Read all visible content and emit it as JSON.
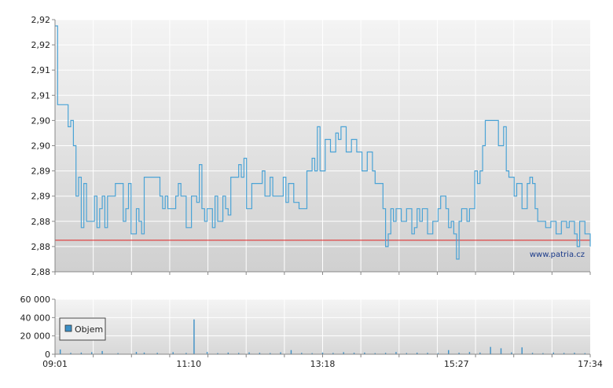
{
  "chart_data": [
    {
      "type": "line",
      "title": "",
      "xlabel": "",
      "ylabel": "",
      "ylim": [
        2.88,
        2.92
      ],
      "y_tick_labels": [
        "2,92",
        "2,92",
        "2,91",
        "2,91",
        "2,90",
        "2,90",
        "2,89",
        "2,89",
        "2,88",
        "2,88",
        "2,88"
      ],
      "grid": true,
      "reference_line": {
        "value": 2.885,
        "color": "#e02020"
      },
      "watermark": "www.patria.cz",
      "series": [
        {
          "color": "#4aa3d6",
          "points": [
            [
              0,
              2.919
            ],
            [
              1,
              2.9065
            ],
            [
              3,
              2.9065
            ],
            [
              5,
              2.903
            ],
            [
              6,
              2.904
            ],
            [
              7,
              2.9
            ],
            [
              8,
              2.892
            ],
            [
              9,
              2.895
            ],
            [
              10,
              2.887
            ],
            [
              11,
              2.894
            ],
            [
              12,
              2.888
            ],
            [
              14,
              2.888
            ],
            [
              15,
              2.892
            ],
            [
              16,
              2.887
            ],
            [
              17,
              2.89
            ],
            [
              18,
              2.892
            ],
            [
              19,
              2.887
            ],
            [
              20,
              2.892
            ],
            [
              22,
              2.892
            ],
            [
              23,
              2.894
            ],
            [
              25,
              2.894
            ],
            [
              26,
              2.888
            ],
            [
              27,
              2.89
            ],
            [
              28,
              2.894
            ],
            [
              29,
              2.886
            ],
            [
              30,
              2.886
            ],
            [
              31,
              2.89
            ],
            [
              32,
              2.888
            ],
            [
              33,
              2.886
            ],
            [
              34,
              2.895
            ],
            [
              39,
              2.895
            ],
            [
              40,
              2.892
            ],
            [
              41,
              2.89
            ],
            [
              42,
              2.892
            ],
            [
              43,
              2.89
            ],
            [
              45,
              2.89
            ],
            [
              46,
              2.892
            ],
            [
              47,
              2.894
            ],
            [
              48,
              2.892
            ],
            [
              49,
              2.892
            ],
            [
              50,
              2.887
            ],
            [
              51,
              2.887
            ],
            [
              52,
              2.892
            ],
            [
              53,
              2.892
            ],
            [
              54,
              2.891
            ],
            [
              55,
              2.897
            ],
            [
              56,
              2.89
            ],
            [
              57,
              2.888
            ],
            [
              58,
              2.89
            ],
            [
              59,
              2.89
            ],
            [
              60,
              2.887
            ],
            [
              61,
              2.892
            ],
            [
              62,
              2.888
            ],
            [
              63,
              2.888
            ],
            [
              64,
              2.892
            ],
            [
              65,
              2.89
            ],
            [
              66,
              2.889
            ],
            [
              67,
              2.895
            ],
            [
              69,
              2.895
            ],
            [
              70,
              2.897
            ],
            [
              71,
              2.895
            ],
            [
              72,
              2.898
            ],
            [
              73,
              2.89
            ],
            [
              74,
              2.89
            ],
            [
              75,
              2.894
            ],
            [
              78,
              2.894
            ],
            [
              79,
              2.896
            ],
            [
              80,
              2.892
            ],
            [
              81,
              2.892
            ],
            [
              82,
              2.895
            ],
            [
              83,
              2.892
            ],
            [
              84,
              2.892
            ],
            [
              86,
              2.892
            ],
            [
              87,
              2.895
            ],
            [
              88,
              2.891
            ],
            [
              89,
              2.894
            ],
            [
              90,
              2.894
            ],
            [
              91,
              2.891
            ],
            [
              92,
              2.891
            ],
            [
              93,
              2.89
            ],
            [
              95,
              2.89
            ],
            [
              96,
              2.896
            ],
            [
              97,
              2.896
            ],
            [
              98,
              2.898
            ],
            [
              99,
              2.896
            ],
            [
              100,
              2.903
            ],
            [
              101,
              2.896
            ],
            [
              102,
              2.896
            ],
            [
              103,
              2.901
            ],
            [
              104,
              2.901
            ],
            [
              105,
              2.899
            ],
            [
              106,
              2.899
            ],
            [
              107,
              2.902
            ],
            [
              108,
              2.901
            ],
            [
              109,
              2.903
            ],
            [
              110,
              2.903
            ],
            [
              111,
              2.899
            ],
            [
              112,
              2.899
            ],
            [
              113,
              2.901
            ],
            [
              115,
              2.899
            ],
            [
              116,
              2.899
            ],
            [
              117,
              2.896
            ],
            [
              118,
              2.896
            ],
            [
              119,
              2.899
            ],
            [
              120,
              2.899
            ],
            [
              121,
              2.896
            ],
            [
              122,
              2.894
            ],
            [
              124,
              2.894
            ],
            [
              125,
              2.89
            ],
            [
              126,
              2.884
            ],
            [
              127,
              2.886
            ],
            [
              128,
              2.89
            ],
            [
              129,
              2.888
            ],
            [
              130,
              2.89
            ],
            [
              131,
              2.89
            ],
            [
              132,
              2.888
            ],
            [
              133,
              2.888
            ],
            [
              134,
              2.89
            ],
            [
              135,
              2.89
            ],
            [
              136,
              2.886
            ],
            [
              137,
              2.887
            ],
            [
              138,
              2.89
            ],
            [
              139,
              2.888
            ],
            [
              140,
              2.89
            ],
            [
              141,
              2.89
            ],
            [
              142,
              2.886
            ],
            [
              143,
              2.886
            ],
            [
              144,
              2.888
            ],
            [
              145,
              2.888
            ],
            [
              146,
              2.89
            ],
            [
              147,
              2.892
            ],
            [
              148,
              2.892
            ],
            [
              149,
              2.89
            ],
            [
              150,
              2.887
            ],
            [
              151,
              2.888
            ],
            [
              152,
              2.886
            ],
            [
              153,
              2.882
            ],
            [
              154,
              2.888
            ],
            [
              155,
              2.89
            ],
            [
              156,
              2.89
            ],
            [
              157,
              2.888
            ],
            [
              158,
              2.89
            ],
            [
              159,
              2.89
            ],
            [
              160,
              2.896
            ],
            [
              161,
              2.894
            ],
            [
              162,
              2.896
            ],
            [
              163,
              2.9
            ],
            [
              164,
              2.904
            ],
            [
              168,
              2.904
            ],
            [
              169,
              2.9
            ],
            [
              170,
              2.9
            ],
            [
              171,
              2.903
            ],
            [
              172,
              2.896
            ],
            [
              173,
              2.895
            ],
            [
              175,
              2.892
            ],
            [
              176,
              2.894
            ],
            [
              177,
              2.894
            ],
            [
              178,
              2.89
            ],
            [
              179,
              2.89
            ],
            [
              180,
              2.894
            ],
            [
              181,
              2.895
            ],
            [
              182,
              2.894
            ],
            [
              183,
              2.89
            ],
            [
              184,
              2.888
            ],
            [
              186,
              2.888
            ],
            [
              187,
              2.887
            ],
            [
              188,
              2.887
            ],
            [
              189,
              2.888
            ],
            [
              190,
              2.888
            ],
            [
              191,
              2.886
            ],
            [
              192,
              2.886
            ],
            [
              193,
              2.888
            ],
            [
              194,
              2.888
            ],
            [
              195,
              2.887
            ],
            [
              196,
              2.888
            ],
            [
              197,
              2.888
            ],
            [
              198,
              2.886
            ],
            [
              199,
              2.884
            ],
            [
              200,
              2.888
            ],
            [
              201,
              2.888
            ],
            [
              202,
              2.886
            ],
            [
              203,
              2.886
            ],
            [
              204,
              2.884
            ]
          ]
        }
      ],
      "x_range": [
        0,
        204
      ],
      "x_tick_labels": [
        "09:01",
        "11:10",
        "13:18",
        "15:27",
        "17:34"
      ]
    },
    {
      "type": "bar",
      "title": "",
      "xlabel": "",
      "ylabel": "",
      "ylim": [
        0,
        60000
      ],
      "y_tick_labels": [
        "60 000",
        "40 000",
        "20 000",
        "0"
      ],
      "grid": true,
      "legend": {
        "position": "top-left",
        "entries": [
          "Objem"
        ]
      },
      "series": [
        {
          "name": "Objem",
          "color": "#3b8fc6",
          "x": [
            2,
            6,
            10,
            14,
            18,
            24,
            31,
            34,
            39,
            45,
            50,
            53,
            58,
            62,
            66,
            70,
            74,
            78,
            82,
            86,
            90,
            94,
            98,
            102,
            106,
            110,
            114,
            118,
            122,
            126,
            130,
            134,
            138,
            142,
            146,
            150,
            154,
            158,
            162,
            166,
            170,
            174,
            178,
            182,
            186,
            190,
            194,
            198,
            202
          ],
          "values": [
            5200,
            1500,
            1800,
            2200,
            3500,
            1200,
            2500,
            1800,
            1500,
            2200,
            1400,
            38000,
            2500,
            1200,
            1800,
            1400,
            2000,
            1600,
            1300,
            2100,
            4500,
            1500,
            1200,
            1800,
            1400,
            2200,
            1600,
            1800,
            1200,
            1500,
            2400,
            1300,
            1700,
            1500,
            1200,
            4500,
            1600,
            2400,
            1800,
            8000,
            6500,
            2000,
            7500,
            1500,
            1200,
            1800,
            1400,
            1600,
            1200
          ]
        }
      ],
      "x_range": [
        0,
        204
      ],
      "x_tick_labels": [
        "09:01",
        "11:10",
        "13:18",
        "15:27",
        "17:34"
      ]
    }
  ]
}
